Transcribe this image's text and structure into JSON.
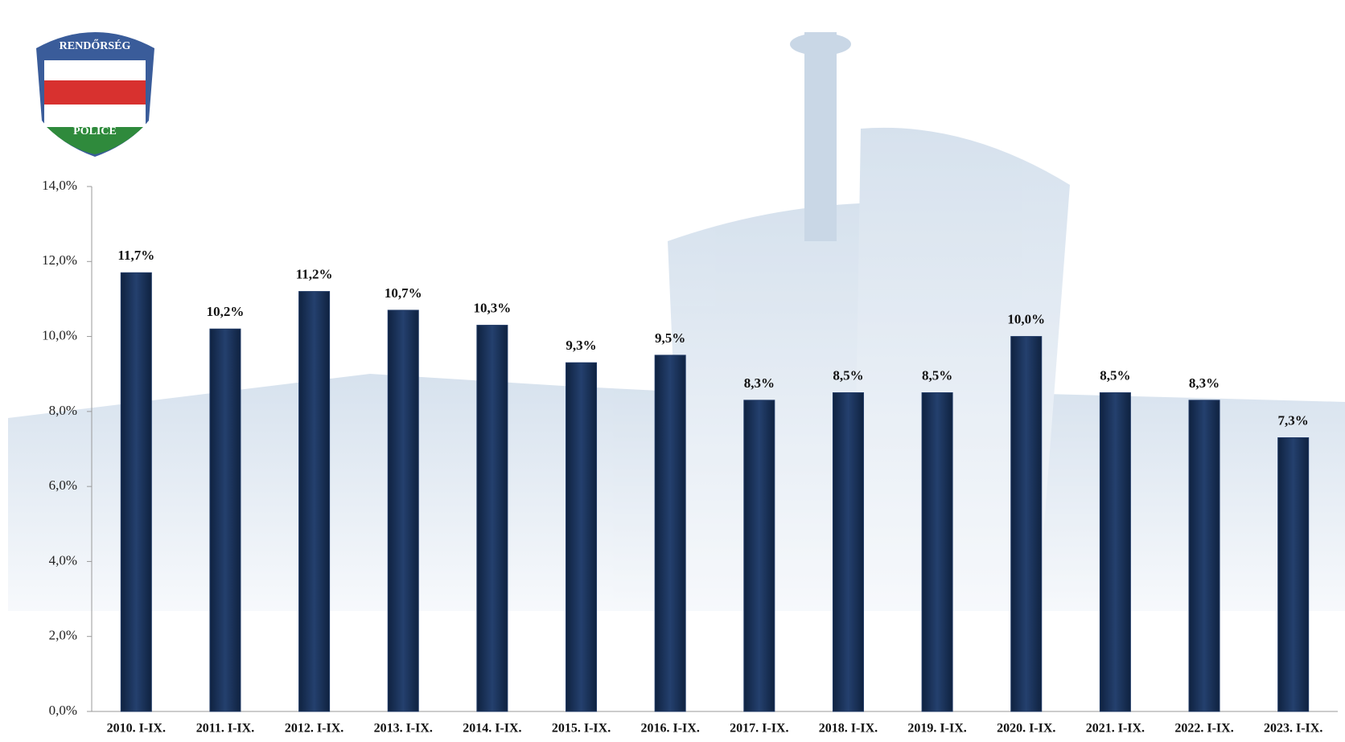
{
  "logo": {
    "top": "RENDŐRSÉG",
    "bottom": "POLICE"
  },
  "chart_data": {
    "type": "bar",
    "categories": [
      "2010. I-IX.",
      "2011. I-IX.",
      "2012. I-IX.",
      "2013. I-IX.",
      "2014. I-IX.",
      "2015. I-IX.",
      "2016. I-IX.",
      "2017. I-IX.",
      "2018. I-IX.",
      "2019. I-IX.",
      "2020. I-IX.",
      "2021. I-IX.",
      "2022. I-IX.",
      "2023. I-IX."
    ],
    "values": [
      11.7,
      10.2,
      11.2,
      10.7,
      10.3,
      9.3,
      9.5,
      8.3,
      8.5,
      8.5,
      10.0,
      8.5,
      8.3,
      7.3
    ],
    "value_labels": [
      "11,7%",
      "10,2%",
      "11,2%",
      "10,7%",
      "10,3%",
      "9,3%",
      "9,5%",
      "8,3%",
      "8,5%",
      "8,5%",
      "10,0%",
      "8,5%",
      "8,3%",
      "7,3%"
    ],
    "color": "#1f3864",
    "ylim": [
      0,
      14
    ],
    "yticks": [
      {
        "value": 0,
        "label": "0,0%"
      },
      {
        "value": 2,
        "label": "2,0%"
      },
      {
        "value": 4,
        "label": "4,0%"
      },
      {
        "value": 6,
        "label": "6,0%"
      },
      {
        "value": 8,
        "label": "8,0%"
      },
      {
        "value": 10,
        "label": "10,0%"
      },
      {
        "value": 12,
        "label": "12,0%"
      },
      {
        "value": 14,
        "label": "14,0%"
      }
    ]
  }
}
